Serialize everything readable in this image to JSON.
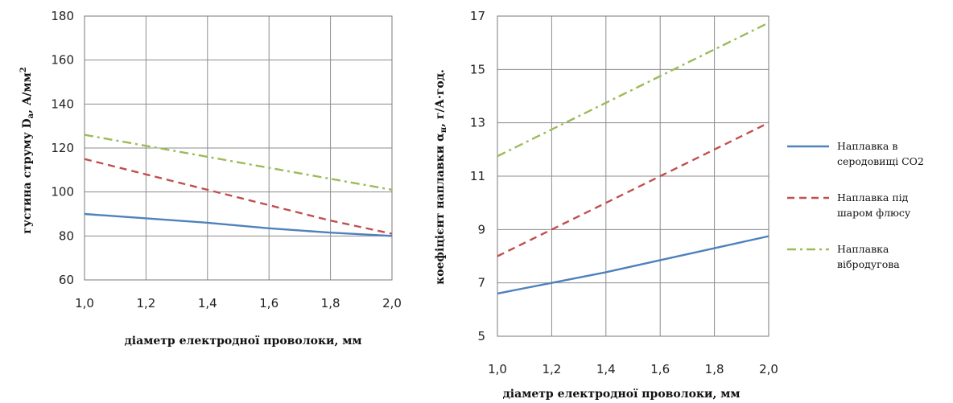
{
  "chart_data": [
    {
      "type": "line",
      "x": [
        1.0,
        1.2,
        1.4,
        1.6,
        1.8,
        2.0
      ],
      "x_tick_labels": [
        "1,0",
        "1,2",
        "1,4",
        "1,6",
        "1,8",
        "2,0"
      ],
      "y_tick_labels": [
        "60",
        "80",
        "100",
        "120",
        "140",
        "160",
        "180"
      ],
      "ylim": [
        60,
        180
      ],
      "xlim": [
        1.0,
        2.0
      ],
      "xlabel": "діаметр електродної проволоки, мм",
      "ylabel": "густина струму D",
      "ylabel_sub": "а",
      "ylabel_tail": ", А/мм",
      "ylabel_sup": "2",
      "grid": true,
      "series": [
        {
          "values": [
            90,
            88,
            86,
            83.5,
            81.5,
            80
          ],
          "color": "#4f81bd",
          "dash": "solid"
        },
        {
          "values": [
            115,
            108,
            101,
            94,
            87,
            81
          ],
          "color": "#c0504d",
          "dash": "dashed"
        },
        {
          "values": [
            126,
            121,
            116,
            111,
            106,
            101
          ],
          "color": "#9bbb59",
          "dash": "dashdot"
        }
      ]
    },
    {
      "type": "line",
      "x": [
        1.0,
        1.2,
        1.4,
        1.6,
        1.8,
        2.0
      ],
      "x_tick_labels": [
        "1,0",
        "1,2",
        "1,4",
        "1,6",
        "1,8",
        "2,0"
      ],
      "y_tick_labels": [
        "5",
        "7",
        "9",
        "11",
        "13",
        "15",
        "17"
      ],
      "ylim": [
        5,
        17
      ],
      "xlim": [
        1.0,
        2.0
      ],
      "xlabel": "діаметр електродної проволоки, мм",
      "ylabel": "коефіцієнт наплавки α",
      "ylabel_sub": "н",
      "ylabel_tail": ", г/А·год.",
      "grid": true,
      "series": [
        {
          "name": "Наплавка в серодовищі CO2",
          "values": [
            6.6,
            7.0,
            7.4,
            7.85,
            8.3,
            8.75
          ],
          "color": "#4f81bd",
          "dash": "solid"
        },
        {
          "name": "Наплавка під шаром флюсу",
          "values": [
            8.0,
            9.0,
            10.0,
            11.0,
            12.0,
            13.0
          ],
          "color": "#c0504d",
          "dash": "dashed"
        },
        {
          "name": "Наплавка вібродугова",
          "values": [
            11.75,
            12.75,
            13.75,
            14.75,
            15.75,
            16.75
          ],
          "color": "#9bbb59",
          "dash": "dashdot"
        }
      ]
    }
  ],
  "legend": {
    "items": [
      {
        "line1": "Наплавка в",
        "line2": "серодовищі CO2",
        "color": "#4f81bd",
        "dash": "solid"
      },
      {
        "line1": "Наплавка під",
        "line2": "шаром флюсу",
        "color": "#c0504d",
        "dash": "dashed"
      },
      {
        "line1": "Наплавка",
        "line2": "вібродугова",
        "color": "#9bbb59",
        "dash": "dashdot"
      }
    ]
  }
}
